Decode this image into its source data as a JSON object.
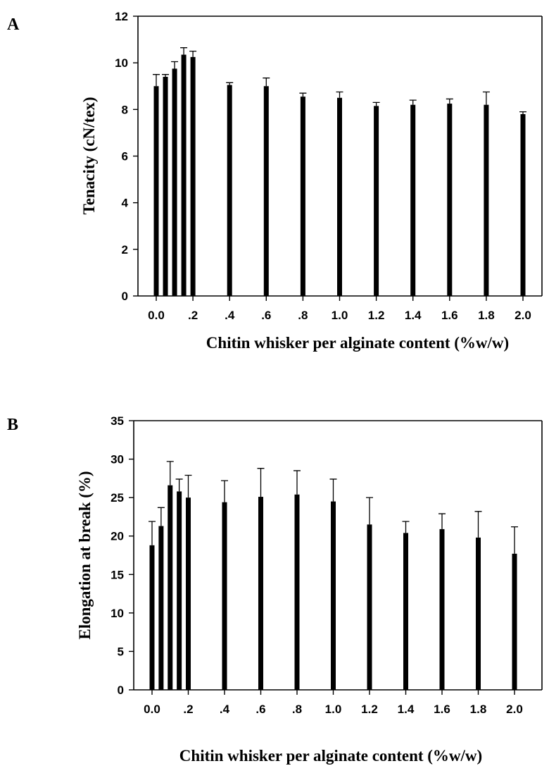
{
  "chart_data": [
    {
      "type": "bar",
      "panel_label": "A",
      "categories": [
        "0.0",
        "0.05",
        "0.1",
        "0.15",
        ".2",
        ".4",
        ".6",
        ".8",
        "1.0",
        "1.2",
        "1.4",
        "1.6",
        "1.8",
        "2.0"
      ],
      "x": [
        0.0,
        0.05,
        0.1,
        0.15,
        0.2,
        0.4,
        0.6,
        0.8,
        1.0,
        1.2,
        1.4,
        1.6,
        1.8,
        2.0
      ],
      "values": [
        9.0,
        9.4,
        9.75,
        10.35,
        10.25,
        9.05,
        9.0,
        8.55,
        8.5,
        8.15,
        8.2,
        8.25,
        8.2,
        7.8
      ],
      "errors": [
        0.5,
        0.1,
        0.3,
        0.3,
        0.25,
        0.1,
        0.35,
        0.15,
        0.25,
        0.15,
        0.2,
        0.2,
        0.55,
        0.1
      ],
      "xticks": [
        "0.0",
        ".2",
        ".4",
        ".6",
        ".8",
        "1.0",
        "1.2",
        "1.4",
        "1.6",
        "1.8",
        "2.0"
      ],
      "xtick_values": [
        0.0,
        0.2,
        0.4,
        0.6,
        0.8,
        1.0,
        1.2,
        1.4,
        1.6,
        1.8,
        2.0
      ],
      "yticks": [
        0,
        2,
        4,
        6,
        8,
        10,
        12
      ],
      "ylim": [
        0,
        12
      ],
      "xlabel": "Chitin whisker per alginate content (%w/w)",
      "ylabel": "Tenacity (cN/tex)",
      "grid": false
    },
    {
      "type": "bar",
      "panel_label": "B",
      "categories": [
        "0.0",
        "0.05",
        "0.1",
        "0.15",
        ".2",
        ".4",
        ".6",
        ".8",
        "1.0",
        "1.2",
        "1.4",
        "1.6",
        "1.8",
        "2.0"
      ],
      "x": [
        0.0,
        0.05,
        0.1,
        0.15,
        0.2,
        0.4,
        0.6,
        0.8,
        1.0,
        1.2,
        1.4,
        1.6,
        1.8,
        2.0
      ],
      "values": [
        18.8,
        21.3,
        26.6,
        25.8,
        25.0,
        24.4,
        25.1,
        25.4,
        24.5,
        21.5,
        20.4,
        20.9,
        19.8,
        17.7
      ],
      "errors": [
        3.1,
        2.4,
        3.1,
        1.6,
        2.9,
        2.8,
        3.7,
        3.1,
        2.9,
        3.5,
        1.5,
        2.0,
        3.4,
        3.5
      ],
      "xticks": [
        "0.0",
        ".2",
        ".4",
        ".6",
        ".8",
        "1.0",
        "1.2",
        "1.4",
        "1.6",
        "1.8",
        "2.0"
      ],
      "xtick_values": [
        0.0,
        0.2,
        0.4,
        0.6,
        0.8,
        1.0,
        1.2,
        1.4,
        1.6,
        1.8,
        2.0
      ],
      "yticks": [
        0,
        5,
        10,
        15,
        20,
        25,
        30,
        35
      ],
      "ylim": [
        0,
        35
      ],
      "xlabel": "Chitin whisker per alginate content (%w/w)",
      "ylabel": "Elongation at break (%)",
      "grid": false
    }
  ]
}
